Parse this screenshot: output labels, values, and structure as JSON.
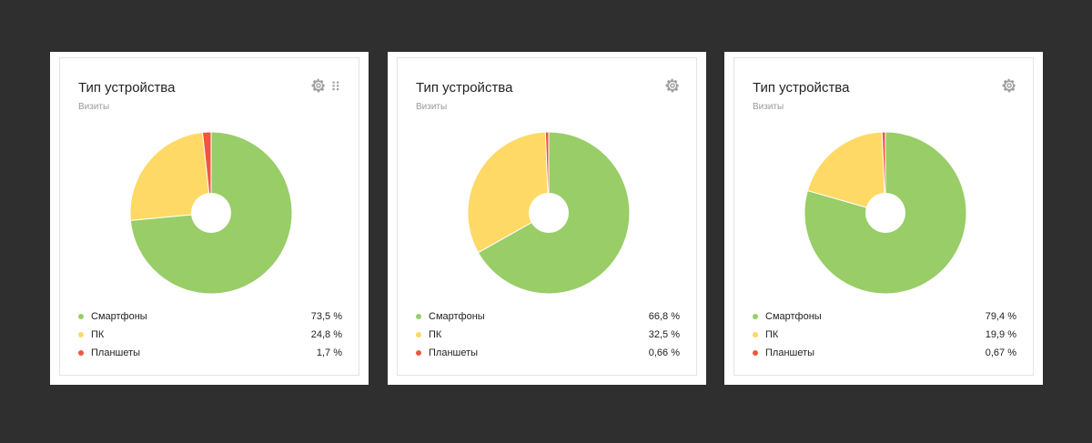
{
  "colors": {
    "smartphones": "#98cd67",
    "pc": "#fed966",
    "tablets": "#f1553e",
    "icon": "#a0a0a0"
  },
  "cards": [
    {
      "title": "Тип устройства",
      "subtitle": "Визиты",
      "icons": [
        "gear-icon",
        "drag-handle-icon"
      ],
      "legend": [
        {
          "label": "Смартфоны",
          "value": "73,5 %"
        },
        {
          "label": "ПК",
          "value": "24,8 %"
        },
        {
          "label": "Планшеты",
          "value": "1,7 %"
        }
      ]
    },
    {
      "title": "Тип устройства",
      "subtitle": "Визиты",
      "icons": [
        "gear-icon"
      ],
      "legend": [
        {
          "label": "Смартфоны",
          "value": "66,8 %"
        },
        {
          "label": "ПК",
          "value": "32,5 %"
        },
        {
          "label": "Планшеты",
          "value": "0,66 %"
        }
      ]
    },
    {
      "title": "Тип устройства",
      "subtitle": "Визиты",
      "icons": [
        "gear-icon"
      ],
      "legend": [
        {
          "label": "Смартфоны",
          "value": "79,4 %"
        },
        {
          "label": "ПК",
          "value": "19,9 %"
        },
        {
          "label": "Планшеты",
          "value": "0,67 %"
        }
      ]
    }
  ],
  "chart_data": [
    {
      "type": "pie",
      "title": "Тип устройства",
      "subtitle": "Визиты",
      "categories": [
        "Смартфоны",
        "ПК",
        "Планшеты"
      ],
      "values": [
        73.5,
        24.8,
        1.7
      ],
      "colors": [
        "#98cd67",
        "#fed966",
        "#f1553e"
      ],
      "legend": "bottom"
    },
    {
      "type": "pie",
      "title": "Тип устройства",
      "subtitle": "Визиты",
      "categories": [
        "Смартфоны",
        "ПК",
        "Планшеты"
      ],
      "values": [
        66.8,
        32.5,
        0.66
      ],
      "colors": [
        "#98cd67",
        "#fed966",
        "#f1553e"
      ],
      "legend": "bottom"
    },
    {
      "type": "pie",
      "title": "Тип устройства",
      "subtitle": "Визиты",
      "categories": [
        "Смартфоны",
        "ПК",
        "Планшеты"
      ],
      "values": [
        79.4,
        19.9,
        0.67
      ],
      "colors": [
        "#98cd67",
        "#fed966",
        "#f1553e"
      ],
      "legend": "bottom"
    }
  ]
}
